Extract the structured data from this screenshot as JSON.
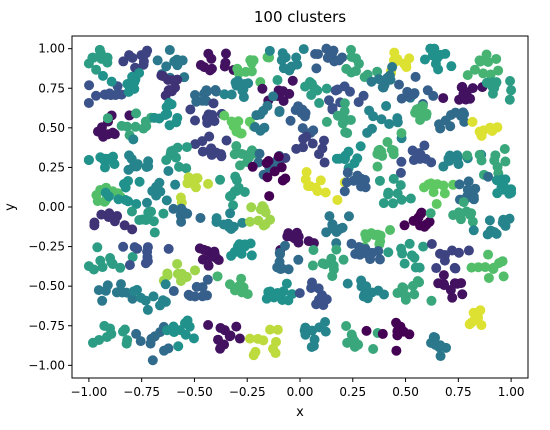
{
  "chart_data": {
    "type": "scatter",
    "title": "100 clusters",
    "xlabel": "x",
    "ylabel": "y",
    "xlim": [
      -1.08,
      1.08
    ],
    "ylim": [
      -1.08,
      1.08
    ],
    "x_ticks": [
      -1.0,
      -0.75,
      -0.5,
      -0.25,
      0.0,
      0.25,
      0.5,
      0.75,
      1.0
    ],
    "x_tick_labels": [
      "−1.00",
      "−0.75",
      "−0.50",
      "−0.25",
      "0.00",
      "0.25",
      "0.50",
      "0.75",
      "1.00"
    ],
    "y_ticks": [
      -1.0,
      -0.75,
      -0.5,
      -0.25,
      0.0,
      0.25,
      0.5,
      0.75,
      1.0
    ],
    "y_tick_labels": [
      "−1.00",
      "−0.75",
      "−0.50",
      "−0.25",
      "0.00",
      "0.25",
      "0.50",
      "0.75",
      "1.00"
    ],
    "grid": false,
    "legend": "none",
    "colormap": "viridis",
    "colormap_stops": [
      "#440154",
      "#3b528b",
      "#21918c",
      "#5ec962",
      "#fde725"
    ],
    "marker_size": 7,
    "clusters": [
      {
        "cx": -0.93,
        "cy": 0.93,
        "c": 0.55
      },
      {
        "cx": -0.78,
        "cy": 0.93,
        "c": 0.2
      },
      {
        "cx": -0.6,
        "cy": 0.9,
        "c": 0.4
      },
      {
        "cx": -0.38,
        "cy": 0.9,
        "c": 0.05
      },
      {
        "cx": -0.22,
        "cy": 0.88,
        "c": 0.7
      },
      {
        "cx": -0.05,
        "cy": 0.93,
        "c": 0.45
      },
      {
        "cx": 0.12,
        "cy": 0.93,
        "c": 0.3
      },
      {
        "cx": 0.27,
        "cy": 0.88,
        "c": 0.6
      },
      {
        "cx": 0.45,
        "cy": 0.9,
        "c": 0.95
      },
      {
        "cx": 0.67,
        "cy": 0.92,
        "c": 0.5
      },
      {
        "cx": 0.88,
        "cy": 0.9,
        "c": 0.65
      },
      {
        "cx": -0.93,
        "cy": 0.72,
        "c": 0.25
      },
      {
        "cx": -0.83,
        "cy": 0.78,
        "c": 0.5
      },
      {
        "cx": -0.64,
        "cy": 0.78,
        "c": 0.15
      },
      {
        "cx": -0.45,
        "cy": 0.72,
        "c": 0.35
      },
      {
        "cx": -0.26,
        "cy": 0.75,
        "c": 0.45
      },
      {
        "cx": -0.1,
        "cy": 0.73,
        "c": 0.05
      },
      {
        "cx": 0.05,
        "cy": 0.75,
        "c": 0.55
      },
      {
        "cx": 0.2,
        "cy": 0.72,
        "c": 0.25
      },
      {
        "cx": 0.4,
        "cy": 0.78,
        "c": 0.4
      },
      {
        "cx": 0.55,
        "cy": 0.72,
        "c": 0.3
      },
      {
        "cx": 0.77,
        "cy": 0.72,
        "c": 0.05
      },
      {
        "cx": 0.92,
        "cy": 0.75,
        "c": 0.55
      },
      {
        "cx": -0.9,
        "cy": 0.5,
        "c": 0.05
      },
      {
        "cx": -0.78,
        "cy": 0.55,
        "c": 0.6
      },
      {
        "cx": -0.6,
        "cy": 0.58,
        "c": 0.5
      },
      {
        "cx": -0.45,
        "cy": 0.55,
        "c": 0.2
      },
      {
        "cx": -0.28,
        "cy": 0.52,
        "c": 0.75
      },
      {
        "cx": -0.17,
        "cy": 0.6,
        "c": 0.4
      },
      {
        "cx": 0.02,
        "cy": 0.55,
        "c": 0.3
      },
      {
        "cx": 0.2,
        "cy": 0.55,
        "c": 0.6
      },
      {
        "cx": 0.38,
        "cy": 0.55,
        "c": 0.45
      },
      {
        "cx": 0.57,
        "cy": 0.55,
        "c": 0.65
      },
      {
        "cx": 0.73,
        "cy": 0.55,
        "c": 0.35
      },
      {
        "cx": 0.88,
        "cy": 0.5,
        "c": 0.95
      },
      {
        "cx": -0.92,
        "cy": 0.3,
        "c": 0.5
      },
      {
        "cx": -0.77,
        "cy": 0.28,
        "c": 0.45
      },
      {
        "cx": -0.58,
        "cy": 0.32,
        "c": 0.55
      },
      {
        "cx": -0.42,
        "cy": 0.35,
        "c": 0.2
      },
      {
        "cx": -0.28,
        "cy": 0.3,
        "c": 0.6
      },
      {
        "cx": -0.13,
        "cy": 0.27,
        "c": 0.35
      },
      {
        "cx": 0.05,
        "cy": 0.35,
        "c": 0.2
      },
      {
        "cx": 0.22,
        "cy": 0.32,
        "c": 0.5
      },
      {
        "cx": 0.4,
        "cy": 0.3,
        "c": 0.65
      },
      {
        "cx": 0.58,
        "cy": 0.33,
        "c": 0.25
      },
      {
        "cx": 0.75,
        "cy": 0.3,
        "c": 0.45
      },
      {
        "cx": 0.92,
        "cy": 0.28,
        "c": 0.6
      },
      {
        "cx": -0.92,
        "cy": 0.1,
        "c": 0.7
      },
      {
        "cx": -0.82,
        "cy": 0.1,
        "c": 0.5
      },
      {
        "cx": -0.65,
        "cy": 0.12,
        "c": 0.45
      },
      {
        "cx": -0.5,
        "cy": 0.12,
        "c": 0.9
      },
      {
        "cx": -0.32,
        "cy": 0.12,
        "c": 0.55
      },
      {
        "cx": -0.12,
        "cy": 0.25,
        "c": 0.0
      },
      {
        "cx": 0.07,
        "cy": 0.12,
        "c": 0.95
      },
      {
        "cx": 0.25,
        "cy": 0.15,
        "c": 0.3
      },
      {
        "cx": 0.45,
        "cy": 0.1,
        "c": 0.55
      },
      {
        "cx": 0.62,
        "cy": 0.12,
        "c": 0.75
      },
      {
        "cx": 0.8,
        "cy": 0.1,
        "c": 0.35
      },
      {
        "cx": 0.95,
        "cy": 0.1,
        "c": 0.5
      },
      {
        "cx": -0.88,
        "cy": -0.1,
        "c": 0.15
      },
      {
        "cx": -0.72,
        "cy": -0.08,
        "c": 0.55
      },
      {
        "cx": -0.55,
        "cy": -0.05,
        "c": 0.35
      },
      {
        "cx": -0.35,
        "cy": -0.1,
        "c": 0.45
      },
      {
        "cx": -0.16,
        "cy": -0.05,
        "c": 0.85
      },
      {
        "cx": -0.03,
        "cy": -0.2,
        "c": 0.05
      },
      {
        "cx": 0.18,
        "cy": -0.1,
        "c": 0.4
      },
      {
        "cx": 0.36,
        "cy": -0.18,
        "c": 0.7
      },
      {
        "cx": 0.58,
        "cy": -0.12,
        "c": 0.0
      },
      {
        "cx": 0.75,
        "cy": -0.05,
        "c": 0.6
      },
      {
        "cx": 0.92,
        "cy": -0.12,
        "c": 0.45
      },
      {
        "cx": -0.9,
        "cy": -0.32,
        "c": 0.55
      },
      {
        "cx": -0.72,
        "cy": -0.3,
        "c": 0.25
      },
      {
        "cx": -0.58,
        "cy": -0.38,
        "c": 0.85
      },
      {
        "cx": -0.45,
        "cy": -0.32,
        "c": 0.05
      },
      {
        "cx": -0.28,
        "cy": -0.28,
        "c": 0.5
      },
      {
        "cx": -0.1,
        "cy": -0.35,
        "c": 0.35
      },
      {
        "cx": 0.1,
        "cy": -0.35,
        "c": 0.6
      },
      {
        "cx": 0.3,
        "cy": -0.3,
        "c": 0.3
      },
      {
        "cx": 0.5,
        "cy": -0.3,
        "c": 0.55
      },
      {
        "cx": 0.7,
        "cy": -0.32,
        "c": 0.2
      },
      {
        "cx": 0.9,
        "cy": -0.38,
        "c": 0.7
      },
      {
        "cx": -0.88,
        "cy": -0.55,
        "c": 0.4
      },
      {
        "cx": -0.7,
        "cy": -0.55,
        "c": 0.45
      },
      {
        "cx": -0.5,
        "cy": -0.55,
        "c": 0.3
      },
      {
        "cx": -0.3,
        "cy": -0.5,
        "c": 0.65
      },
      {
        "cx": -0.1,
        "cy": -0.58,
        "c": 0.5
      },
      {
        "cx": 0.1,
        "cy": -0.55,
        "c": 0.25
      },
      {
        "cx": 0.32,
        "cy": -0.55,
        "c": 0.45
      },
      {
        "cx": 0.52,
        "cy": -0.55,
        "c": 0.6
      },
      {
        "cx": 0.72,
        "cy": -0.5,
        "c": 0.05
      },
      {
        "cx": 0.85,
        "cy": -0.7,
        "c": 0.95
      },
      {
        "cx": -0.88,
        "cy": -0.8,
        "c": 0.55
      },
      {
        "cx": -0.72,
        "cy": -0.85,
        "c": 0.35
      },
      {
        "cx": -0.55,
        "cy": -0.78,
        "c": 0.5
      },
      {
        "cx": -0.35,
        "cy": -0.8,
        "c": 0.05
      },
      {
        "cx": -0.15,
        "cy": -0.85,
        "c": 0.9
      },
      {
        "cx": 0.05,
        "cy": -0.8,
        "c": 0.45
      },
      {
        "cx": 0.25,
        "cy": -0.85,
        "c": 0.6
      },
      {
        "cx": 0.45,
        "cy": -0.8,
        "c": 0.0
      },
      {
        "cx": 0.65,
        "cy": -0.85,
        "c": 0.4
      }
    ]
  }
}
